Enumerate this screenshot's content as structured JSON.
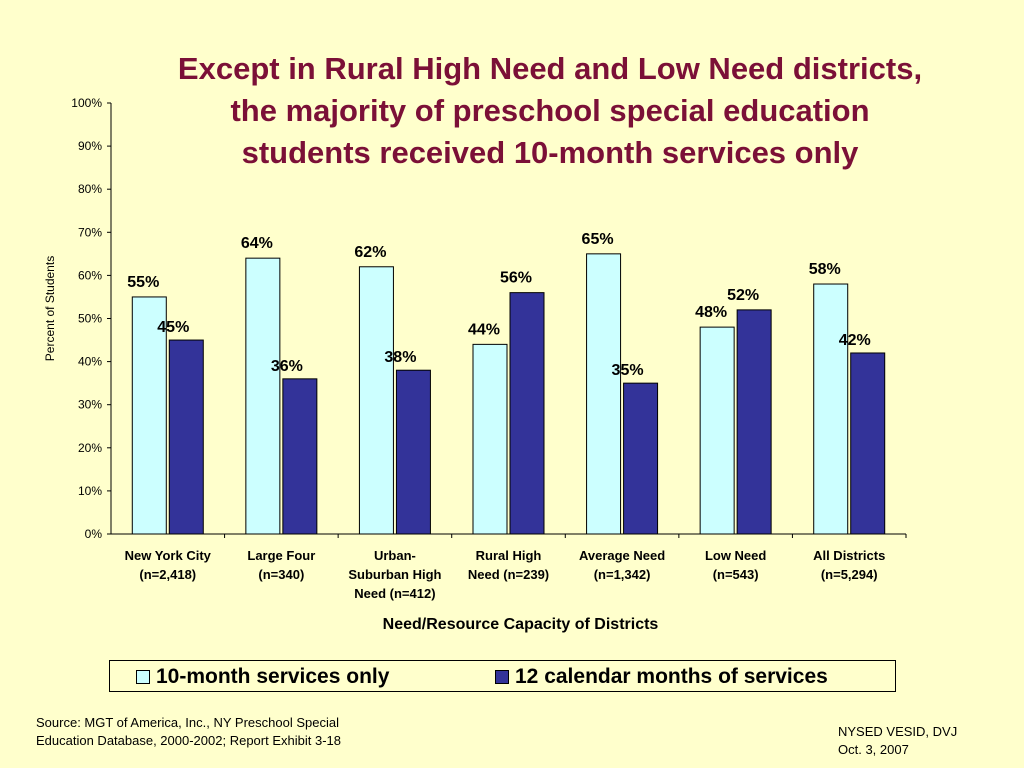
{
  "title_lines": [
    "Except in Rural High Need and Low Need districts,",
    "the majority of preschool special education",
    "students received 10-month services only"
  ],
  "chart_data": {
    "type": "bar",
    "categories": [
      [
        "New York City",
        "(n=2,418)"
      ],
      [
        "Large Four",
        "(n=340)"
      ],
      [
        "Urban-",
        "Suburban High",
        "Need (n=412)"
      ],
      [
        "Rural High",
        "Need (n=239)"
      ],
      [
        "Average Need",
        "(n=1,342)"
      ],
      [
        "Low Need",
        "(n=543)"
      ],
      [
        "All Districts",
        "(n=5,294)"
      ]
    ],
    "series": [
      {
        "name": "10-month services only",
        "color": "#ccffff",
        "values": [
          55,
          64,
          62,
          44,
          65,
          48,
          58
        ]
      },
      {
        "name": "12 calendar months of services",
        "color": "#333399",
        "values": [
          45,
          36,
          38,
          56,
          35,
          52,
          42
        ]
      }
    ],
    "ylabel": "Percent of Students",
    "xlabel": "Need/Resource Capacity of Districts",
    "ylim": [
      0,
      100
    ],
    "yticks": [
      0,
      10,
      20,
      30,
      40,
      50,
      60,
      70,
      80,
      90,
      100
    ],
    "ytick_suffix": "%",
    "data_label_suffix": "%",
    "legend_position": "bottom",
    "grid": false
  },
  "legend": [
    {
      "label": "10-month services only",
      "color": "#ccffff"
    },
    {
      "label": "12 calendar months of services",
      "color": "#333399"
    }
  ],
  "source_lines": [
    "Source: MGT of America, Inc., NY Preschool Special",
    "Education Database, 2000-2002; Report Exhibit 3-18"
  ],
  "credit_lines": [
    "NYSED VESID, DVJ",
    "Oct. 3, 2007"
  ]
}
